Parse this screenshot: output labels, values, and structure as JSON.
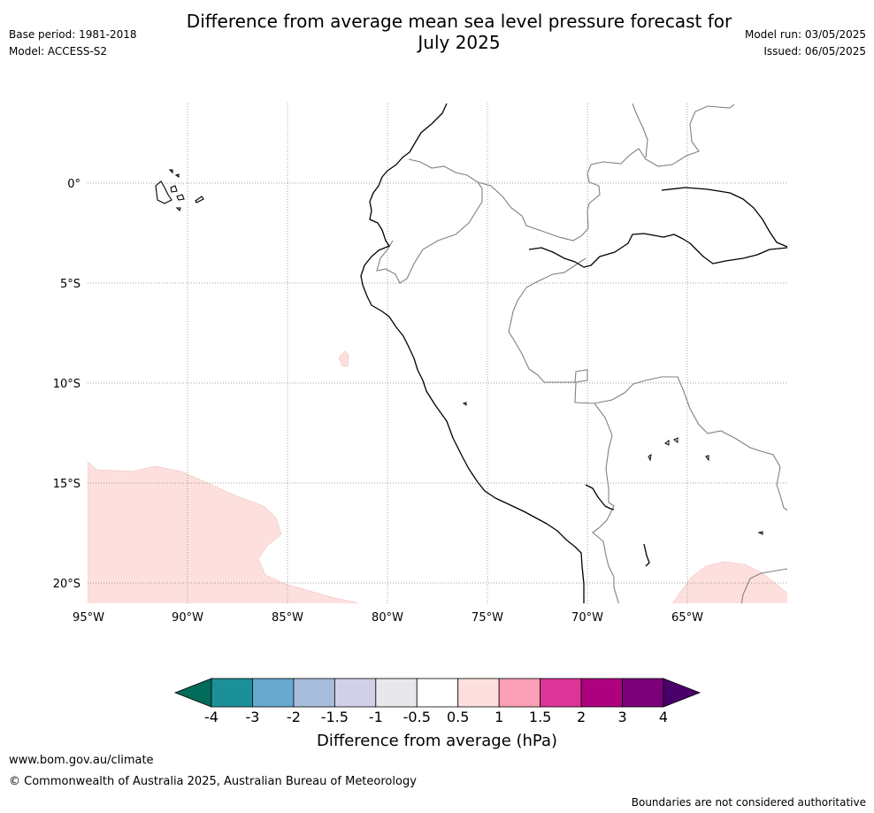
{
  "header": {
    "title_line1": "Difference from average mean sea level pressure forecast for",
    "title_line2": "July 2025",
    "base_period": "Base period: 1981-2018",
    "model": "Model: ACCESS-S2",
    "model_run": "Model run: 03/05/2025",
    "issued": "Issued: 06/05/2025"
  },
  "map": {
    "lat_labels": [
      "0°",
      "5°S",
      "10°S",
      "15°S",
      "20°S"
    ],
    "lon_labels": [
      "95°W",
      "90°W",
      "85°W",
      "80°W",
      "75°W",
      "70°W",
      "65°W"
    ],
    "anomaly_regions": [
      {
        "name": "southwest-pacific",
        "class": "0.5 to 1"
      },
      {
        "name": "offshore-peru-islet",
        "class": "0.5 to 1"
      },
      {
        "name": "southeast-interior",
        "class": "0.5 to 1"
      }
    ],
    "colors": {
      "coast": "#000000",
      "border": "#808080",
      "grid": "#808080",
      "anomaly_0_5_to_1": "#fde0dd"
    }
  },
  "colorbar": {
    "title": "Difference from average (hPa)",
    "ticks": [
      "-4",
      "-3",
      "-2",
      "-1.5",
      "-1",
      "-0.5",
      "0.5",
      "1",
      "1.5",
      "2",
      "3",
      "4"
    ],
    "under_color": "#016c59",
    "over_color": "#49006a",
    "colors": [
      "#1c9099",
      "#67a9cf",
      "#a6bddb",
      "#d0d1e6",
      "#e8e8ec",
      "#ffffff",
      "#fde0dd",
      "#fa9fb5",
      "#dd3497",
      "#ae017e",
      "#7a0177"
    ]
  },
  "footer": {
    "url": "www.bom.gov.au/climate",
    "copyright": "© Commonwealth of Australia 2025, Australian Bureau of Meteorology",
    "disclaimer": "Boundaries are not considered authoritative"
  }
}
